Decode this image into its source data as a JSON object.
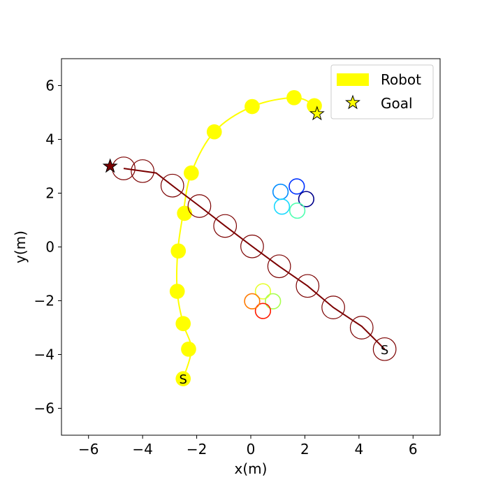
{
  "chart_data": {
    "type": "scatter",
    "title": "",
    "xlabel": "x(m)",
    "ylabel": "y(m)",
    "xlim": [
      -7,
      7
    ],
    "ylim": [
      -7,
      7
    ],
    "xticks": [
      -6,
      -4,
      -2,
      0,
      2,
      4,
      6
    ],
    "yticks": [
      -6,
      -4,
      -2,
      0,
      2,
      4,
      6
    ],
    "xtick_labels": [
      "−6",
      "−4",
      "−2",
      "0",
      "2",
      "4",
      "6"
    ],
    "ytick_labels": [
      "−6",
      "−4",
      "−2",
      "0",
      "2",
      "4",
      "6"
    ],
    "grid": false,
    "legend_position": "top-right",
    "legend": [
      {
        "label": "Robot",
        "marker": "rectangle",
        "color": "#ffff00"
      },
      {
        "label": "Goal",
        "marker": "star",
        "color": "#ffff00"
      }
    ],
    "robot": {
      "color": "#ffff00",
      "start_label": "S",
      "start": [
        -2.5,
        -4.9
      ],
      "goal": [
        2.45,
        4.95
      ],
      "path": [
        [
          -2.5,
          -4.9
        ],
        [
          -2.2,
          -3.8
        ],
        [
          -2.5,
          -2.85
        ],
        [
          -2.72,
          -1.65
        ],
        [
          -2.7,
          -0.15
        ],
        [
          -2.5,
          1.25
        ],
        [
          -2.2,
          2.75
        ],
        [
          -1.35,
          4.28
        ],
        [
          0.05,
          5.22
        ],
        [
          1.6,
          5.55
        ],
        [
          2.35,
          5.25
        ],
        [
          2.45,
          4.95
        ]
      ],
      "positions": [
        [
          -2.5,
          -4.9
        ],
        [
          -2.3,
          -3.8
        ],
        [
          -2.5,
          -2.85
        ],
        [
          -2.72,
          -1.65
        ],
        [
          -2.68,
          -0.15
        ],
        [
          -2.45,
          1.25
        ],
        [
          -2.2,
          2.75
        ],
        [
          -1.35,
          4.28
        ],
        [
          0.05,
          5.22
        ],
        [
          1.6,
          5.55
        ],
        [
          2.35,
          5.25
        ]
      ],
      "radius": 0.28
    },
    "agents": [
      {
        "color": "#7b0000",
        "start_label": "S",
        "start": [
          4.95,
          -3.8
        ],
        "goal": [
          -5.2,
          3.0
        ],
        "path": [
          [
            4.95,
            -3.8
          ],
          [
            4.1,
            -2.95
          ],
          [
            3.05,
            -2.25
          ],
          [
            2.1,
            -1.45
          ],
          [
            1.05,
            -0.72
          ],
          [
            0.05,
            0.02
          ],
          [
            -0.95,
            0.78
          ],
          [
            -1.9,
            1.52
          ],
          [
            -2.9,
            2.28
          ],
          [
            -3.5,
            2.75
          ],
          [
            -4.7,
            2.92
          ]
        ],
        "positions": [
          [
            4.95,
            -3.8
          ],
          [
            4.1,
            -3.0
          ],
          [
            3.05,
            -2.25
          ],
          [
            2.1,
            -1.45
          ],
          [
            1.05,
            -0.72
          ],
          [
            0.05,
            0.02
          ],
          [
            -0.95,
            0.78
          ],
          [
            -1.9,
            1.52
          ],
          [
            -2.9,
            2.28
          ],
          [
            -4.0,
            2.82
          ],
          [
            -4.7,
            2.92
          ]
        ],
        "radius": 0.42
      }
    ],
    "obstacle_groups": [
      {
        "circles": [
          {
            "x": 1.1,
            "y": 2.05,
            "color": "#008cff"
          },
          {
            "x": 1.7,
            "y": 2.25,
            "color": "#0033ff"
          },
          {
            "x": 2.05,
            "y": 1.78,
            "color": "#00008b"
          },
          {
            "x": 1.72,
            "y": 1.35,
            "color": "#4fffb0"
          },
          {
            "x": 1.15,
            "y": 1.5,
            "color": "#1ad9ff"
          }
        ],
        "radius": 0.28
      },
      {
        "circles": [
          {
            "x": 0.45,
            "y": -1.65,
            "color": "#e6ff33"
          },
          {
            "x": 0.82,
            "y": -2.02,
            "color": "#a8ff4f"
          },
          {
            "x": 0.45,
            "y": -2.38,
            "color": "#ff1a00"
          },
          {
            "x": 0.05,
            "y": -2.02,
            "color": "#ff7a00"
          }
        ],
        "radius": 0.28
      }
    ]
  }
}
